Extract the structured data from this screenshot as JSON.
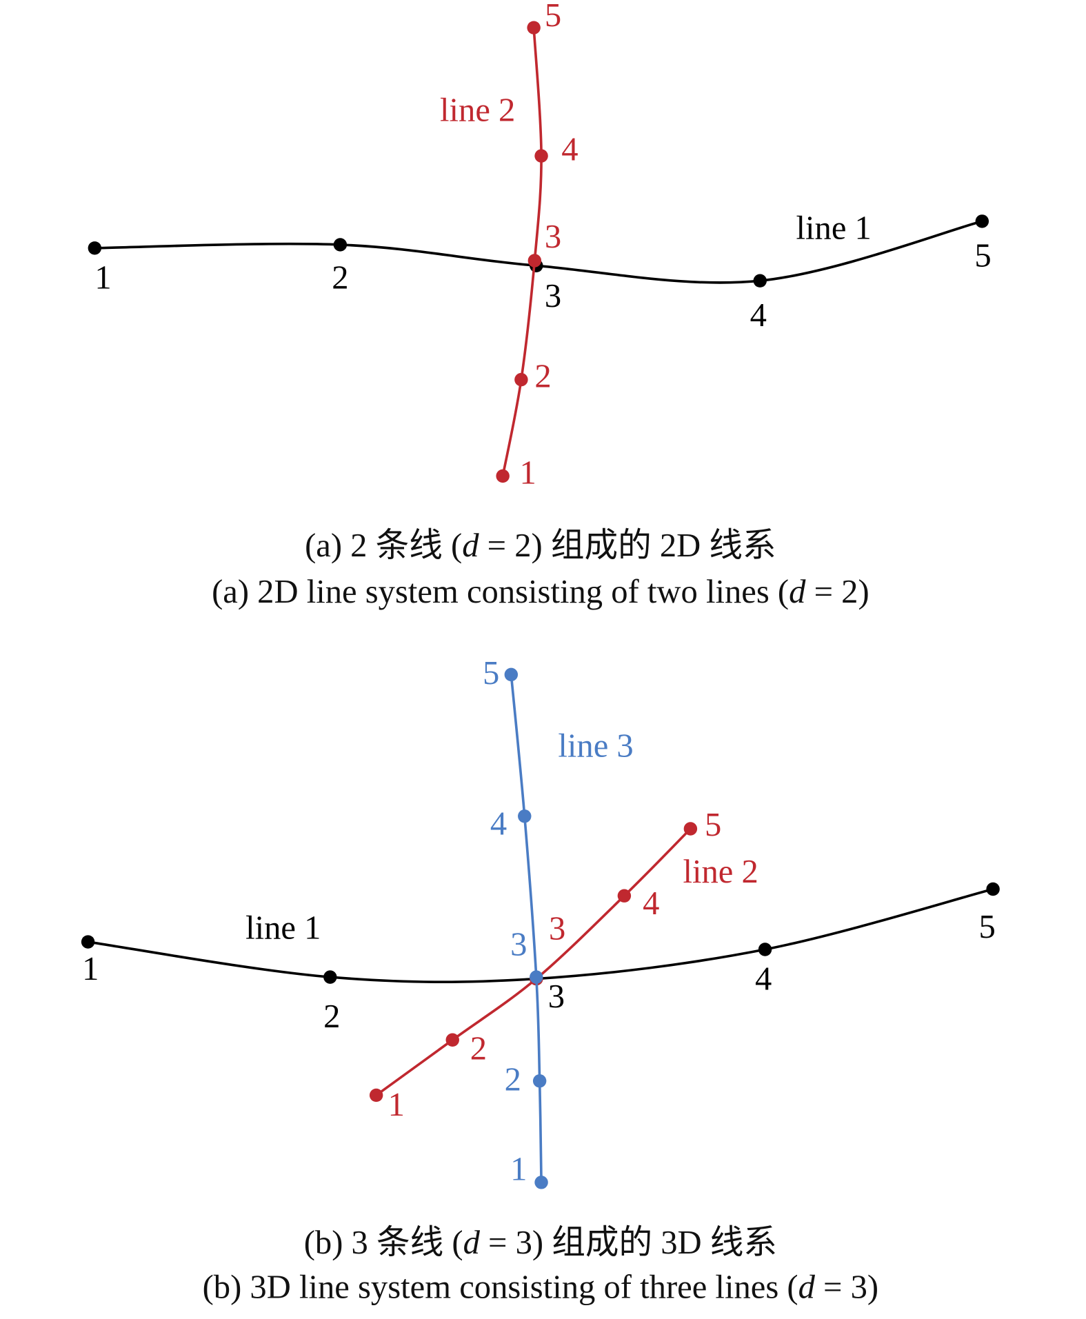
{
  "panels": [
    {
      "lines": [
        {
          "name": "line 1",
          "color": "#000000",
          "point_labels": [
            "1",
            "2",
            "3",
            "4",
            "5"
          ]
        },
        {
          "name": "line 2",
          "color": "#c0282f",
          "point_labels": [
            "1",
            "2",
            "3",
            "4",
            "5"
          ]
        }
      ],
      "caption_zh": [
        "(a) 2 条线 (",
        "d",
        " = 2) 组成的 2D 线系"
      ],
      "caption_en": [
        "(a) 2D line system consisting of two lines (",
        "d",
        " = 2)"
      ]
    },
    {
      "lines": [
        {
          "name": "line 1",
          "color": "#000000",
          "point_labels": [
            "1",
            "2",
            "3",
            "4",
            "5"
          ]
        },
        {
          "name": "line 2",
          "color": "#c0282f",
          "point_labels": [
            "1",
            "2",
            "3",
            "4",
            "5"
          ]
        },
        {
          "name": "line 3",
          "color": "#4a7cc4",
          "point_labels": [
            "1",
            "2",
            "3",
            "4",
            "5"
          ]
        }
      ],
      "caption_zh": [
        "(b) 3 条线 (",
        "d",
        " = 3) 组成的 3D 线系"
      ],
      "caption_en": [
        "(b) 3D line system consisting of three lines (",
        "d",
        " = 3)"
      ]
    }
  ]
}
